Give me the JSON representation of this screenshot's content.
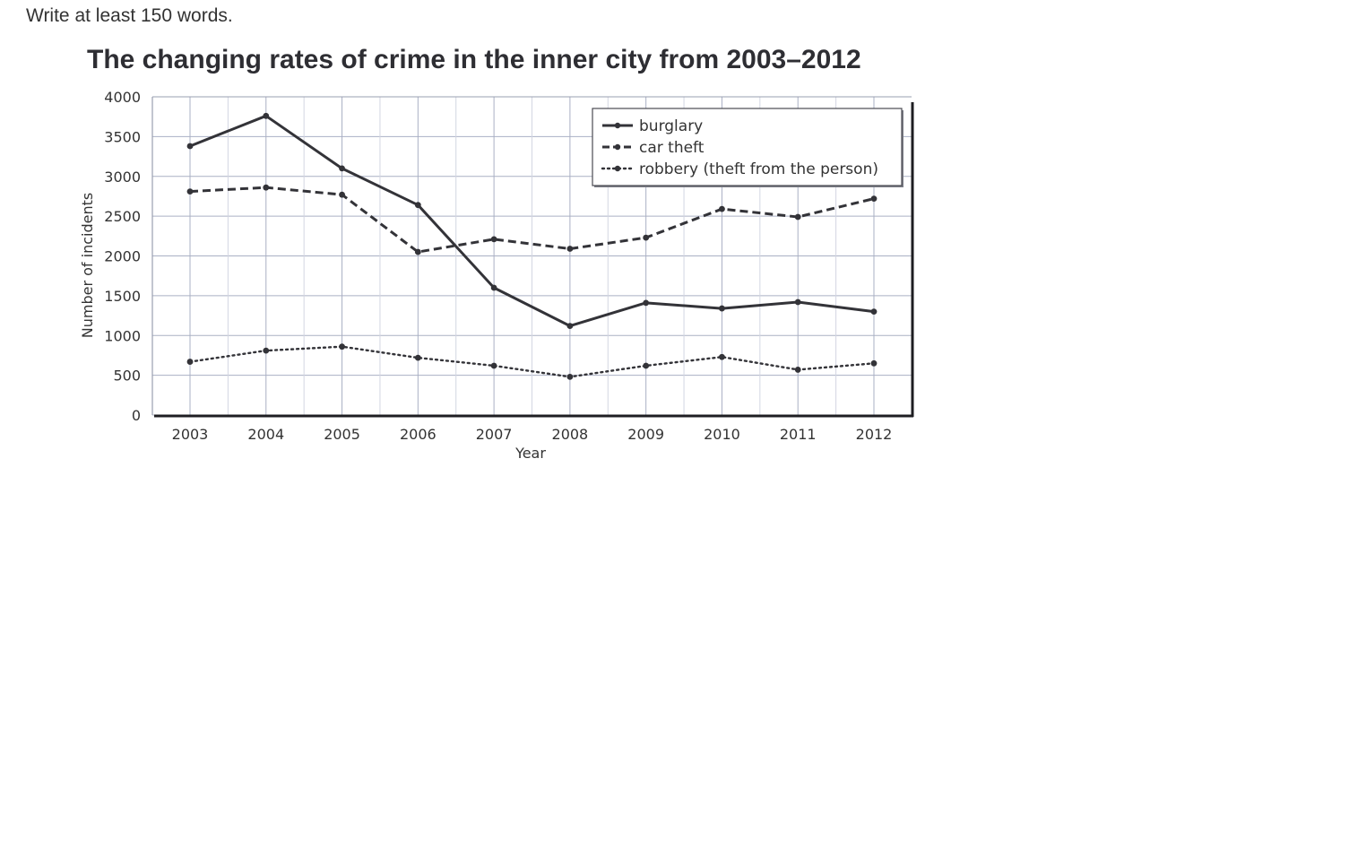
{
  "instruction_text": "Write at least 150 words.",
  "chart_data": {
    "type": "line",
    "title": "The changing rates of crime in the inner city from 2003–2012",
    "xlabel": "Year",
    "ylabel": "Number of incidents",
    "ylim": [
      0,
      4000
    ],
    "yticks": [
      0,
      500,
      1000,
      1500,
      2000,
      2500,
      3000,
      3500,
      4000
    ],
    "categories": [
      "2003",
      "2004",
      "2005",
      "2006",
      "2007",
      "2008",
      "2009",
      "2010",
      "2011",
      "2012"
    ],
    "grid": true,
    "legend_position": "top-right",
    "series": [
      {
        "name": "burglary",
        "line_style": "solid",
        "values": [
          3380,
          3760,
          3100,
          2640,
          1600,
          1120,
          1410,
          1340,
          1420,
          1300
        ]
      },
      {
        "name": "car theft",
        "line_style": "dashed",
        "values": [
          2810,
          2860,
          2770,
          2050,
          2210,
          2090,
          2230,
          2590,
          2490,
          2720
        ]
      },
      {
        "name": "robbery (theft from the person)",
        "line_style": "dotted",
        "values": [
          670,
          810,
          860,
          720,
          620,
          480,
          620,
          730,
          570,
          650
        ]
      }
    ],
    "colors": {
      "line": "#333338",
      "grid": "#aab0c4",
      "frame": "#1e1e22"
    }
  }
}
